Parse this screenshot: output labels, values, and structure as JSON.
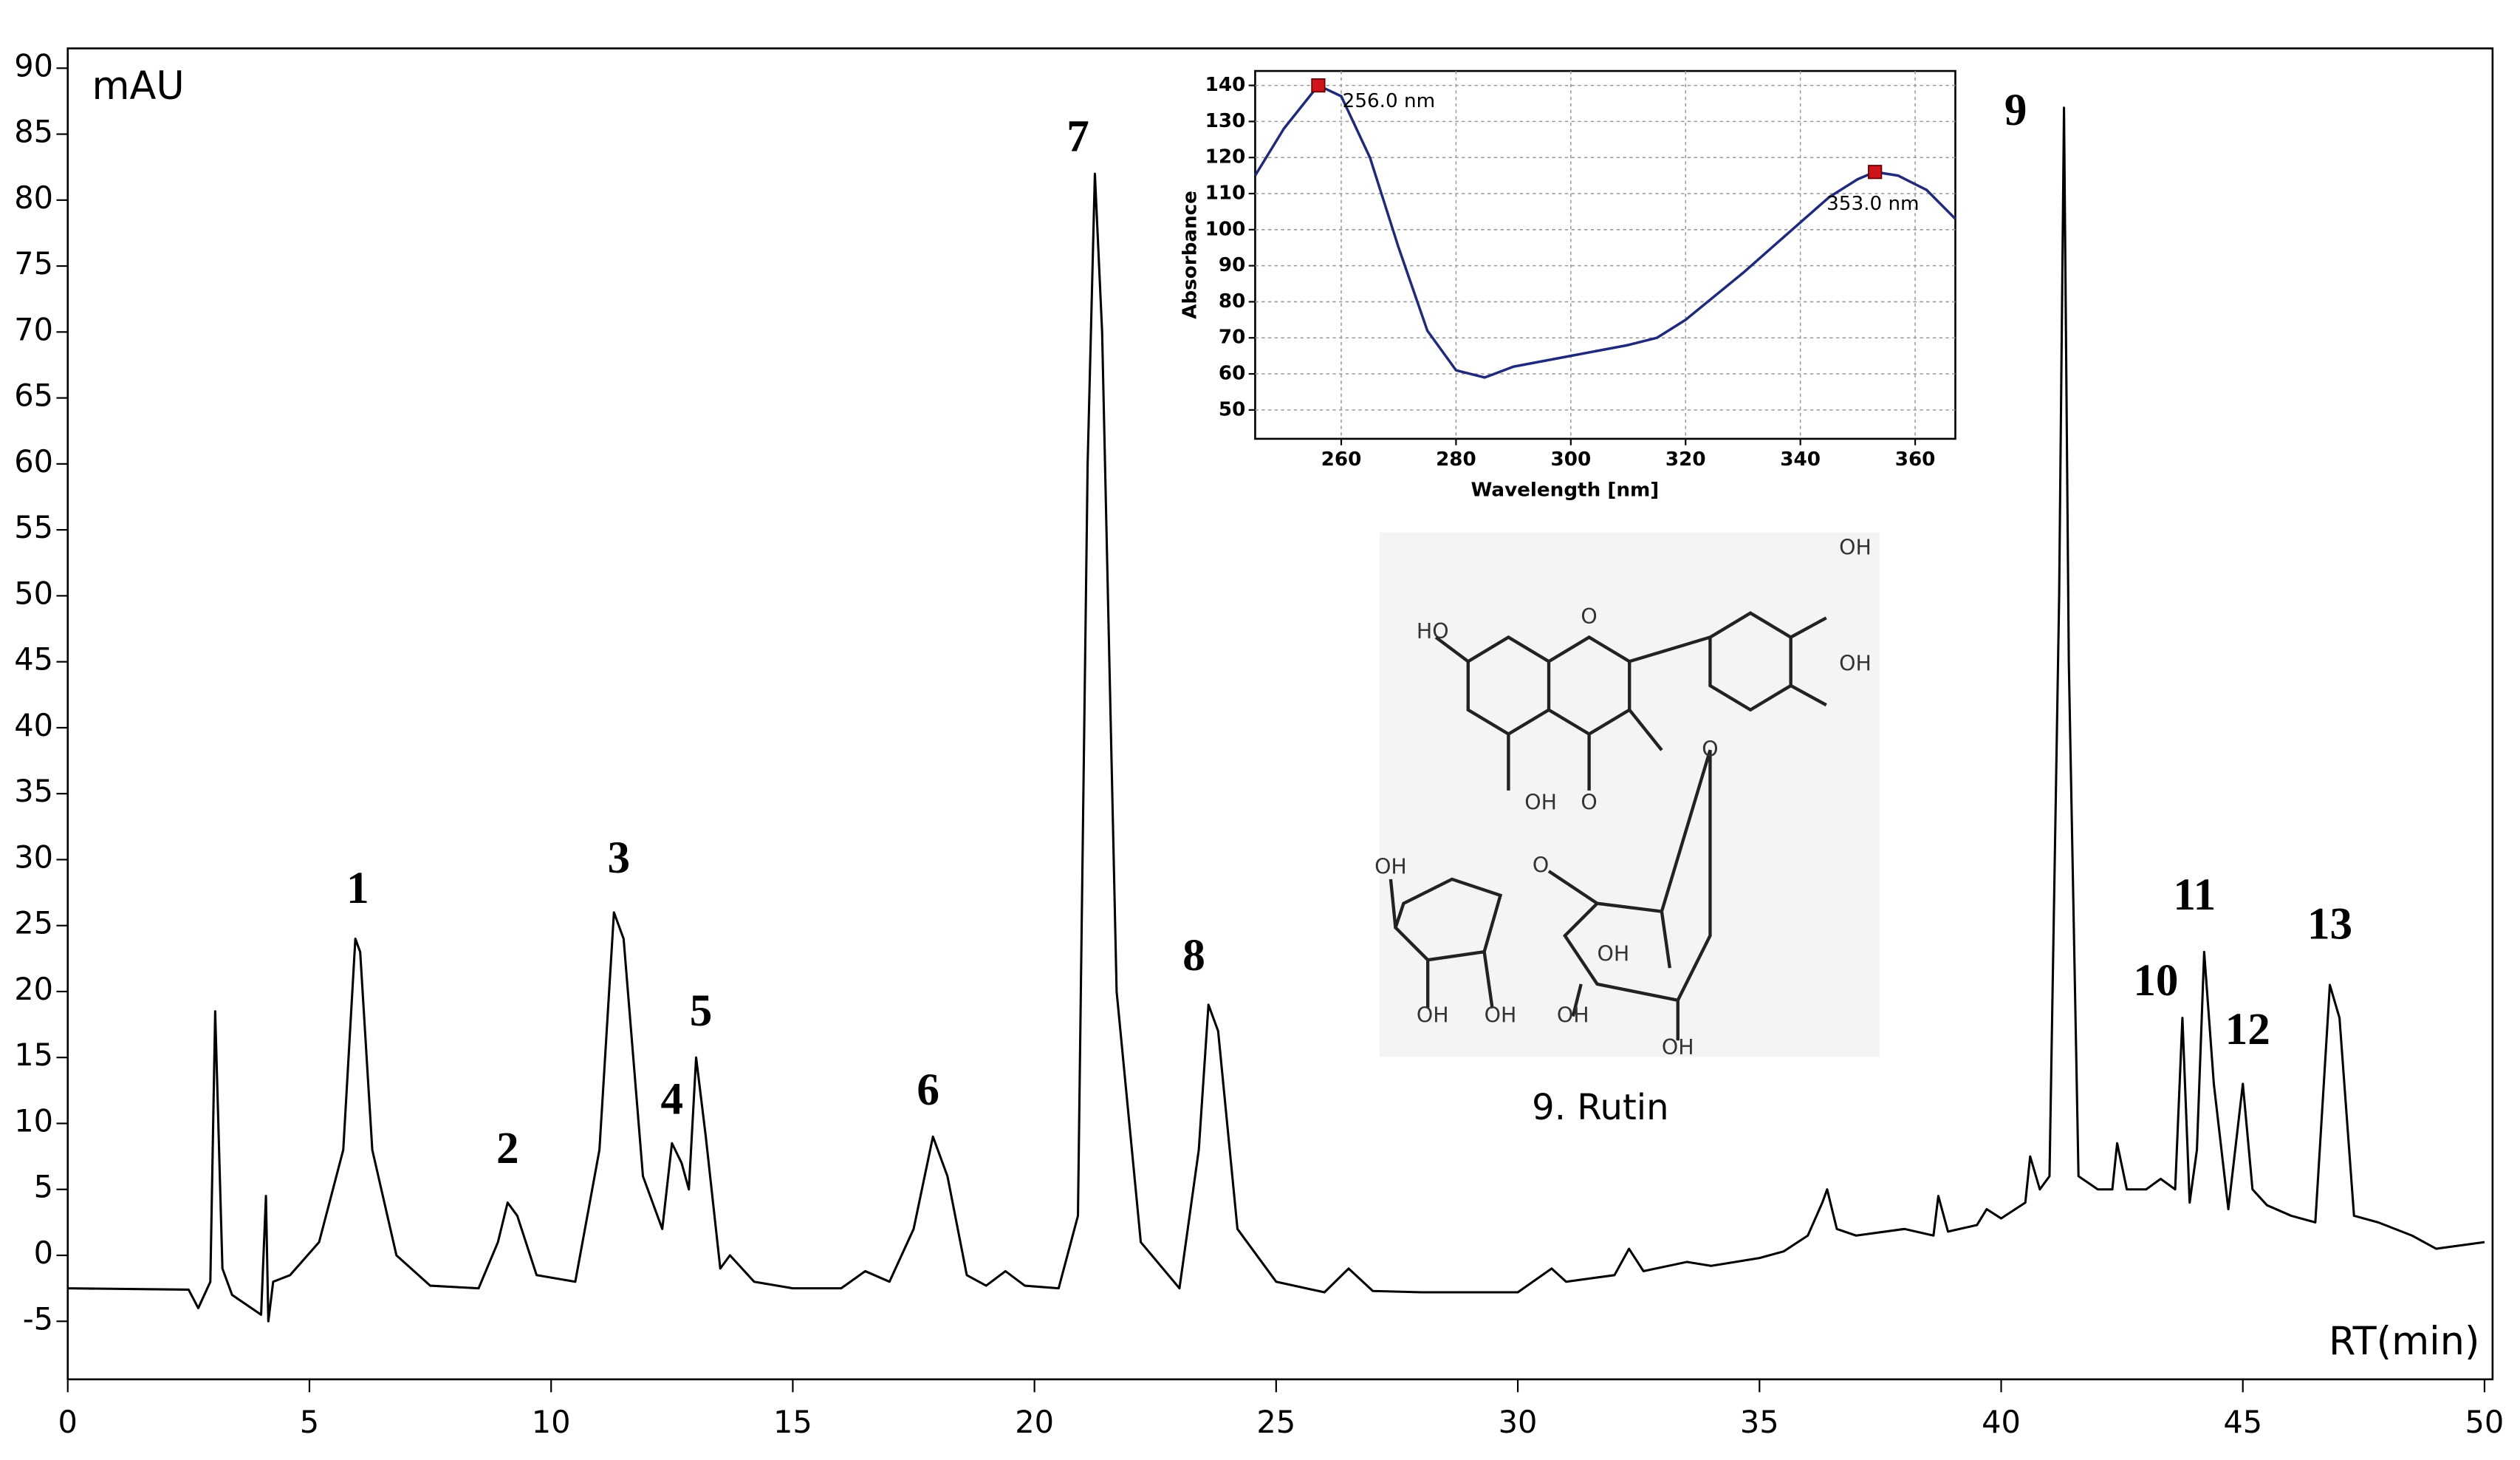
{
  "chart_data": [
    {
      "type": "line",
      "y_label": "mAU",
      "x_label": "RT(min)",
      "color": "#000000",
      "xlim": [
        0,
        50
      ],
      "ylim": [
        -9.4,
        91.5
      ],
      "xticks": [
        0,
        5,
        10,
        15,
        20,
        25,
        30,
        35,
        40,
        45,
        50
      ],
      "yticks": [
        -5,
        0,
        5,
        10,
        15,
        20,
        25,
        30,
        35,
        40,
        45,
        50,
        55,
        60,
        65,
        70,
        75,
        80,
        85,
        90
      ],
      "x": [
        0,
        2.5,
        2.7,
        2.95,
        3.05,
        3.2,
        3.4,
        4.0,
        4.1,
        4.15,
        4.25,
        4.6,
        5.2,
        5.7,
        5.95,
        6.05,
        6.3,
        6.8,
        7.5,
        8.5,
        8.9,
        9.1,
        9.3,
        9.7,
        10.5,
        11.0,
        11.3,
        11.5,
        11.9,
        12.3,
        12.5,
        12.7,
        12.85,
        13.0,
        13.2,
        13.5,
        13.7,
        14.2,
        15,
        16,
        16.5,
        17,
        17.5,
        17.9,
        18.2,
        18.6,
        19,
        19.4,
        19.8,
        20.5,
        20.9,
        21.1,
        21.25,
        21.4,
        21.7,
        22.2,
        23,
        23.4,
        23.6,
        23.8,
        24.2,
        25,
        26,
        26.5,
        27,
        28,
        29,
        30,
        30.7,
        31,
        32,
        32.3,
        32.6,
        33.5,
        34,
        35,
        35.5,
        36,
        36.3,
        36.4,
        36.6,
        37,
        38,
        38.6,
        38.7,
        38.9,
        39.5,
        39.7,
        40,
        40.5,
        40.6,
        40.8,
        41.0,
        41.2,
        41.3,
        41.4,
        41.6,
        42,
        42.3,
        42.4,
        42.6,
        43,
        43.3,
        43.6,
        43.75,
        43.9,
        44.05,
        44.2,
        44.4,
        44.7,
        45.0,
        45.2,
        45.5,
        46,
        46.5,
        46.8,
        47.0,
        47.3,
        47.8,
        48.5,
        49,
        50
      ],
      "y": [
        -2.5,
        -2.6,
        -4,
        -2,
        18.5,
        -1,
        -3,
        -4.5,
        4.5,
        -5,
        -2,
        -1.5,
        1,
        8,
        24,
        23,
        8,
        0,
        -2.3,
        -2.5,
        1,
        4,
        3,
        -1.5,
        -2,
        8,
        26,
        24,
        6,
        2,
        8.5,
        7,
        5,
        15,
        9,
        -1,
        0,
        -2,
        -2.5,
        -2.5,
        -1.2,
        -2,
        2,
        9,
        6,
        -1.5,
        -2.3,
        -1.2,
        -2.3,
        -2.5,
        3,
        60,
        82,
        70,
        20,
        1,
        -2.5,
        8,
        19,
        17,
        2,
        -2,
        -2.8,
        -1,
        -2.7,
        -2.8,
        -2.8,
        -2.8,
        -1,
        -2,
        -1.5,
        0.5,
        -1.2,
        -0.5,
        -0.8,
        -0.2,
        0.3,
        1.5,
        4,
        5,
        2,
        1.5,
        2,
        1.5,
        4.5,
        1.8,
        2.3,
        3.5,
        2.8,
        4,
        7.5,
        5,
        6,
        50,
        87,
        45,
        6,
        5,
        5,
        8.5,
        5,
        5,
        5.8,
        5,
        18,
        4,
        8,
        23,
        13,
        3.5,
        13,
        5,
        3.8,
        3,
        2.5,
        20.5,
        18,
        3,
        2.5,
        1.5,
        0.5,
        1
      ],
      "annotations": [
        {
          "text": "1",
          "x": 6.0,
          "y": 27.5
        },
        {
          "text": "2",
          "x": 9.1,
          "y": 7.8
        },
        {
          "text": "3",
          "x": 11.4,
          "y": 29.8
        },
        {
          "text": "4",
          "x": 12.5,
          "y": 11.5
        },
        {
          "text": "5",
          "x": 13.1,
          "y": 18.2
        },
        {
          "text": "6",
          "x": 17.8,
          "y": 12.2
        },
        {
          "text": "7",
          "x": 20.9,
          "y": 84.5
        },
        {
          "text": "8",
          "x": 23.3,
          "y": 22.4
        },
        {
          "text": "9",
          "x": 40.3,
          "y": 86.5
        },
        {
          "text": "10",
          "x": 43.2,
          "y": 20.5
        },
        {
          "text": "11",
          "x": 44.0,
          "y": 27
        },
        {
          "text": "12",
          "x": 45.1,
          "y": 16.8
        },
        {
          "text": "13",
          "x": 46.8,
          "y": 24.8
        }
      ]
    },
    {
      "type": "line",
      "x_label": "Wavelength [nm]",
      "y_label": "Absorbance",
      "color": "#1f2a7a",
      "grid": true,
      "xlim": [
        245,
        367
      ],
      "ylim": [
        42,
        144
      ],
      "xticks": [
        260,
        280,
        300,
        320,
        340,
        360
      ],
      "yticks": [
        50,
        60,
        70,
        80,
        90,
        100,
        110,
        120,
        130,
        140
      ],
      "x": [
        245,
        250,
        256,
        260,
        265,
        270,
        275,
        280,
        285,
        290,
        300,
        310,
        315,
        320,
        330,
        340,
        345,
        350,
        353,
        357,
        362,
        367
      ],
      "y": [
        115,
        128,
        140,
        137,
        120,
        95,
        72,
        61,
        59,
        62,
        65,
        68,
        70,
        75,
        88,
        102,
        109,
        114,
        116,
        115,
        111,
        103
      ],
      "peaks": [
        {
          "x": 256,
          "y": 140,
          "label": "256.0 nm"
        },
        {
          "x": 353,
          "y": 116,
          "label": "353.0 nm"
        }
      ]
    }
  ],
  "structure": {
    "caption": "9. Rutin",
    "labels": [
      "HO",
      "OH",
      "OH",
      "OH",
      "O",
      "O",
      "O",
      "O",
      "OH",
      "OH",
      "OH",
      "OH",
      "OH",
      "OH"
    ]
  }
}
